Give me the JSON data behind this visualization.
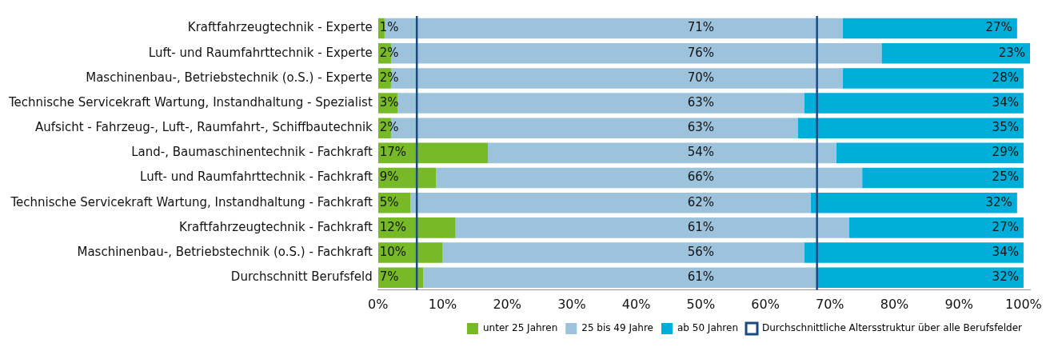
{
  "chart_data": {
    "type": "bar",
    "orientation": "horizontal",
    "stacked": true,
    "categories": [
      "Kraftfahrzeugtechnik - Experte",
      "Luft- und Raumfahrttechnik - Experte",
      "Maschinenbau-, Betriebstechnik (o.S.) - Experte",
      "Technische Servicekraft Wartung, Instandhaltung - Spezialist",
      "Aufsicht - Fahrzeug-, Luft-, Raumfahrt-, Schiffbautechnik",
      "Land-, Baumaschinentechnik - Fachkraft",
      "Luft- und Raumfahrttechnik - Fachkraft",
      "Technische Servicekraft Wartung, Instandhaltung - Fachkraft",
      "Kraftfahrzeugtechnik - Fachkraft",
      "Maschinenbau-, Betriebstechnik (o.S.) - Fachkraft",
      "Durchschnitt Berufsfeld"
    ],
    "series": [
      {
        "name": "unter 25 Jahren",
        "color": "#78b928",
        "values": [
          1,
          2,
          2,
          3,
          2,
          17,
          9,
          5,
          12,
          10,
          7
        ],
        "value_labels": [
          "1%",
          "2%",
          "2%",
          "3%",
          "2%",
          "17%",
          "9%",
          "5%",
          "12%",
          "10%",
          "7%"
        ]
      },
      {
        "name": "25 bis 49 Jahre",
        "color": "#9dc3dc",
        "values": [
          71,
          76,
          70,
          63,
          63,
          54,
          66,
          62,
          61,
          56,
          61
        ],
        "value_labels": [
          "71%",
          "76%",
          "70%",
          "63%",
          "63%",
          "54%",
          "66%",
          "62%",
          "61%",
          "56%",
          "61%"
        ]
      },
      {
        "name": "ab 50 Jahren",
        "color": "#00afd9",
        "values": [
          27,
          23,
          28,
          34,
          35,
          29,
          25,
          32,
          27,
          34,
          32
        ],
        "value_labels": [
          "27%",
          "23%",
          "28%",
          "34%",
          "35%",
          "29%",
          "25%",
          "32%",
          "27%",
          "34%",
          "32%"
        ]
      }
    ],
    "xlim": [
      0,
      101
    ],
    "xticks": [
      {
        "value": 0,
        "label": "0%"
      },
      {
        "value": 10,
        "label": "10%"
      },
      {
        "value": 20,
        "label": "20%"
      },
      {
        "value": 30,
        "label": "30%"
      },
      {
        "value": 40,
        "label": "40%"
      },
      {
        "value": 50,
        "label": "50%"
      },
      {
        "value": 60,
        "label": "60%"
      },
      {
        "value": 70,
        "label": "70%"
      },
      {
        "value": 80,
        "label": "80%"
      },
      {
        "value": 90,
        "label": "90%"
      },
      {
        "value": 100,
        "label": "100%"
      }
    ],
    "ref_lines": [
      {
        "axis": "x",
        "value": 6,
        "label": "Durchschnittliche Altersstruktur über alle Berufsfelder",
        "color": "#1b4a80"
      },
      {
        "axis": "x",
        "value": 68,
        "color": "#1b4a80"
      }
    ],
    "grid": false,
    "legend": "bottom"
  }
}
